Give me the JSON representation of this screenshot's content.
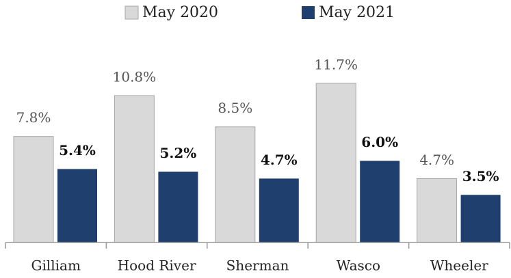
{
  "chart_data": {
    "type": "bar",
    "categories": [
      "Gilliam",
      "Hood River",
      "Sherman",
      "Wasco",
      "Wheeler"
    ],
    "series": [
      {
        "name": "May 2020",
        "color": "#d9d9d9",
        "values": [
          7.8,
          10.8,
          8.5,
          11.7,
          4.7
        ],
        "value_labels": [
          "7.8%",
          "10.8%",
          "8.5%",
          "11.7%",
          "4.7%"
        ]
      },
      {
        "name": "May 2021",
        "color": "#1f3f6e",
        "values": [
          5.4,
          5.2,
          4.7,
          6.0,
          3.5
        ],
        "value_labels": [
          "5.4%",
          "5.2%",
          "4.7%",
          "6.0%",
          "3.5%"
        ]
      }
    ],
    "legend": "top"
  }
}
